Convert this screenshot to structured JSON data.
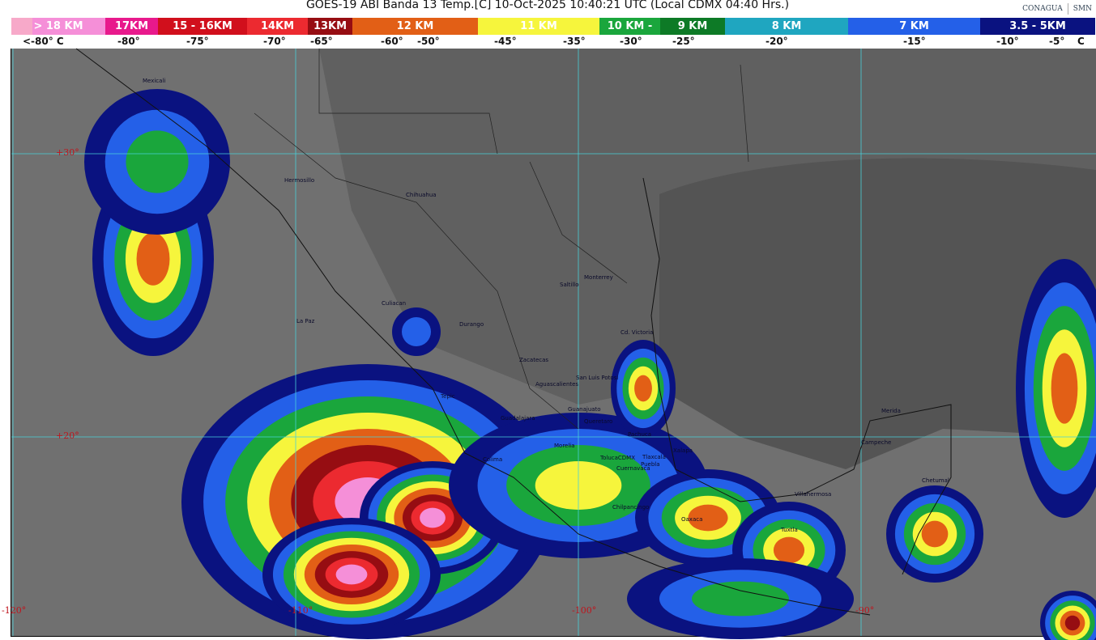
{
  "header": {
    "title": "GOES-19 ABI Banda 13 Temp.[C] 10-Oct-2025 10:40:21 UTC (Local CDMX  04:40 Hrs.)",
    "logos": [
      "CONAGUA",
      "SMN"
    ]
  },
  "color_scale": {
    "segments": [
      {
        "label": "> 18 KM",
        "color": "#f58fd8"
      },
      {
        "label": "17KM",
        "color": "#e8198c"
      },
      {
        "label": "15 - 16KM",
        "color": "#d10f1c"
      },
      {
        "label": "14KM",
        "color": "#ec2a30"
      },
      {
        "label": "13KM",
        "color": "#960d12"
      },
      {
        "label": "12 KM",
        "color": "#e25f16"
      },
      {
        "label": "11 KM",
        "color": "#f6f53c"
      },
      {
        "label": "10 KM -",
        "color": "#1aa63c"
      },
      {
        "label": "9 KM",
        "color": "#0d7a26"
      },
      {
        "label": "8 KM",
        "color": "#1fa6c0"
      },
      {
        "label": "7 KM",
        "color": "#2460e8"
      },
      {
        "label": "3.5 - 5KM",
        "color": "#0a1280"
      }
    ],
    "temperatures": [
      "<-80° C",
      "-80°",
      "-75°",
      "-70°",
      "-65°",
      "-60°",
      "-50°",
      "-45°",
      "-35°",
      "-30°",
      "-25°",
      "-20°",
      "-15°",
      "-10°",
      "-5°",
      "C"
    ]
  },
  "map": {
    "latitude_labels": [
      "+30°",
      "+20°"
    ],
    "longitude_labels": [
      "-120°",
      "-110°",
      "-100°",
      "-90°"
    ],
    "cities": [
      "Mexicali",
      "Hermosillo",
      "Chihuahua",
      "Culiacan",
      "La Paz",
      "Durango",
      "Saltillo",
      "Monterrey",
      "Cd. Victoria",
      "Zacatecas",
      "Aguascalientes",
      "San Luis Potosi",
      "Tepic",
      "Guadalajara",
      "Guanajuato",
      "Queretaro",
      "Pachuca",
      "Morelia",
      "Colima",
      "TolucaCDMX",
      "Tlaxcala",
      "Puebla",
      "Cuernavaca",
      "Xalapa",
      "Chilpancingo",
      "Oaxaca",
      "Villahermosa",
      "Tuxtla",
      "Campeche",
      "Merida",
      "Chetumal"
    ]
  }
}
